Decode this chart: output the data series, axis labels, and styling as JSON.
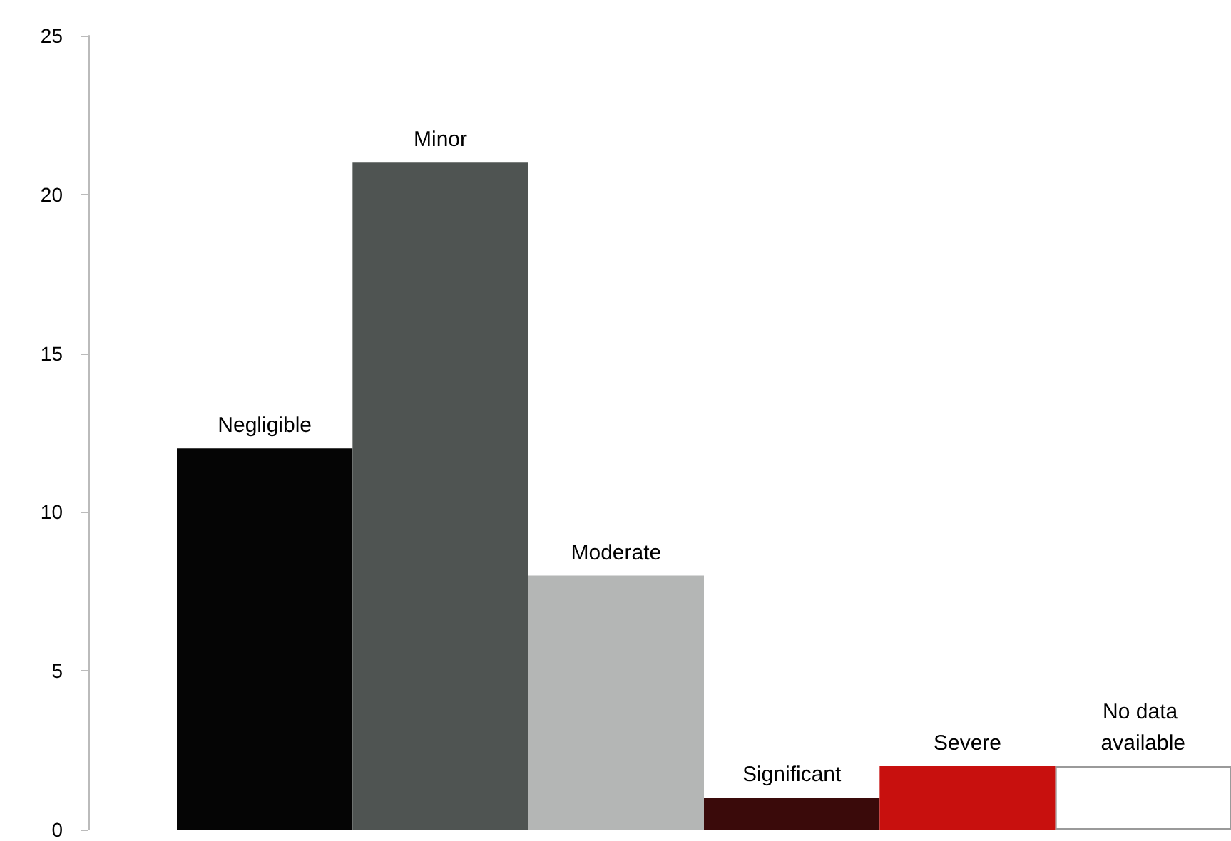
{
  "chart_data": {
    "type": "bar",
    "categories": [
      "Negligible",
      "Minor",
      "Moderate",
      "Significant",
      "Severe",
      "No data available"
    ],
    "values": [
      12,
      21,
      8,
      1,
      2,
      2
    ],
    "colors": [
      "#050505",
      "#4f5452",
      "#b4b6b5",
      "#3a0a0a",
      "#c8100e",
      "#ffffff"
    ],
    "ylim": [
      0,
      25
    ],
    "yticks": [
      0,
      5,
      10,
      15,
      20,
      25
    ],
    "grid": false,
    "tick_labels": "y"
  }
}
